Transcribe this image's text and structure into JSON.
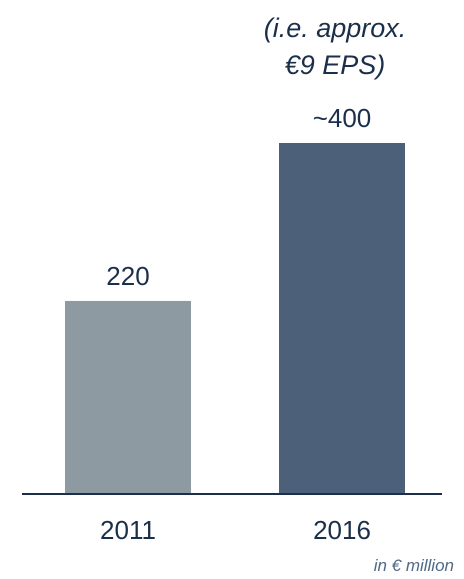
{
  "chart_data": {
    "type": "bar",
    "categories": [
      "2011",
      "2016"
    ],
    "values": [
      220,
      400
    ],
    "value_labels": [
      "220",
      "~400"
    ],
    "annotation": [
      "(i.e. approx.",
      "€9 EPS)"
    ],
    "unit_note": "in € million",
    "ylim": [
      0,
      400
    ],
    "grid": false,
    "legend": "none",
    "colors": {
      "bars": [
        "#8d9aa2",
        "#4d6079"
      ],
      "axis": "#1b2f4a",
      "text": "#1b2f4a",
      "unit_text": "#4f6a86"
    }
  }
}
